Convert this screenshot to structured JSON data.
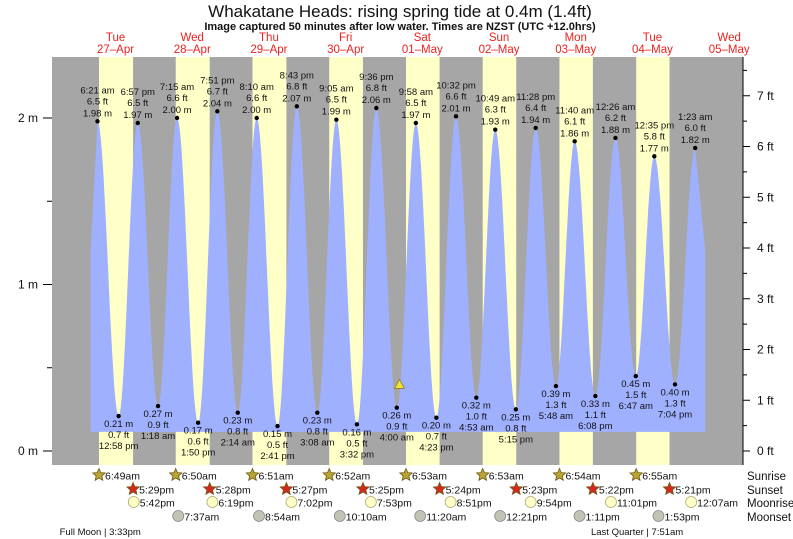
{
  "chart_data": {
    "type": "area",
    "title": "Whakatane Heads: rising  spring tide at 0.4m (1.4ft)",
    "subtitle": "Image captured 50 minutes after low water. Times are NZST (UTC +12.0hrs)",
    "left_axis": {
      "unit": "m",
      "ticks": [
        "0 m",
        "1 m",
        "2 m"
      ],
      "values": [
        0,
        1,
        2
      ]
    },
    "right_axis": {
      "unit": "ft",
      "ticks": [
        "0 ft",
        "1 ft",
        "2 ft",
        "3 ft",
        "4 ft",
        "5 ft",
        "6 ft",
        "7 ft"
      ],
      "values": [
        0,
        1,
        2,
        3,
        4,
        5,
        6,
        7
      ]
    },
    "days": [
      {
        "name": "Tue",
        "date": "27–Apr"
      },
      {
        "name": "Wed",
        "date": "28–Apr"
      },
      {
        "name": "Thu",
        "date": "29–Apr"
      },
      {
        "name": "Fri",
        "date": "30–Apr"
      },
      {
        "name": "Sat",
        "date": "01–May"
      },
      {
        "name": "Sun",
        "date": "02–May"
      },
      {
        "name": "Mon",
        "date": "03–May"
      },
      {
        "name": "Tue",
        "date": "04–May"
      },
      {
        "name": "Wed",
        "date": "05–May"
      }
    ],
    "extremes": [
      {
        "day": 0,
        "type": "high",
        "time": "6:21 am",
        "ft": "6.5 ft",
        "m": 1.98
      },
      {
        "day": 0,
        "type": "low",
        "time": "12:58 pm",
        "ft": "0.7 ft",
        "m": 0.21
      },
      {
        "day": 0,
        "type": "high",
        "time": "6:57 pm",
        "ft": "6.5 ft",
        "m": 1.97
      },
      {
        "day": 1,
        "type": "low",
        "time": "1:18 am",
        "ft": "0.9 ft",
        "m": 0.27
      },
      {
        "day": 1,
        "type": "high",
        "time": "7:15 am",
        "ft": "6.6 ft",
        "m": 2.0
      },
      {
        "day": 1,
        "type": "low",
        "time": "1:50 pm",
        "ft": "0.6 ft",
        "m": 0.17
      },
      {
        "day": 1,
        "type": "high",
        "time": "7:51 pm",
        "ft": "6.7 ft",
        "m": 2.04
      },
      {
        "day": 2,
        "type": "low",
        "time": "2:14 am",
        "ft": "0.8 ft",
        "m": 0.23
      },
      {
        "day": 2,
        "type": "high",
        "time": "8:10 am",
        "ft": "6.6 ft",
        "m": 2.0
      },
      {
        "day": 2,
        "type": "low",
        "time": "2:41 pm",
        "ft": "0.5 ft",
        "m": 0.15
      },
      {
        "day": 2,
        "type": "high",
        "time": "8:43 pm",
        "ft": "6.8 ft",
        "m": 2.07
      },
      {
        "day": 3,
        "type": "low",
        "time": "3:08 am",
        "ft": "0.8 ft",
        "m": 0.23
      },
      {
        "day": 3,
        "type": "high",
        "time": "9:05 am",
        "ft": "6.5 ft",
        "m": 1.99
      },
      {
        "day": 3,
        "type": "low",
        "time": "3:32 pm",
        "ft": "0.5 ft",
        "m": 0.16
      },
      {
        "day": 3,
        "type": "high",
        "time": "9:36 pm",
        "ft": "6.8 ft",
        "m": 2.06
      },
      {
        "day": 4,
        "type": "low",
        "time": "4:00 am",
        "ft": "0.9 ft",
        "m": 0.26
      },
      {
        "day": 4,
        "type": "high",
        "time": "9:58 am",
        "ft": "6.5 ft",
        "m": 1.97
      },
      {
        "day": 4,
        "type": "low",
        "time": "4:23 pm",
        "ft": "0.7 ft",
        "m": 0.2
      },
      {
        "day": 4,
        "type": "high",
        "time": "10:32 pm",
        "ft": "6.6 ft",
        "m": 2.01
      },
      {
        "day": 5,
        "type": "low",
        "time": "4:53 am",
        "ft": "1.0 ft",
        "m": 0.32
      },
      {
        "day": 5,
        "type": "high",
        "time": "10:49 am",
        "ft": "6.3 ft",
        "m": 1.93
      },
      {
        "day": 5,
        "type": "low",
        "time": "5:15 pm",
        "ft": "0.8 ft",
        "m": 0.25
      },
      {
        "day": 5,
        "type": "high",
        "time": "11:28 pm",
        "ft": "6.4 ft",
        "m": 1.94
      },
      {
        "day": 6,
        "type": "low",
        "time": "5:48 am",
        "ft": "1.3 ft",
        "m": 0.39
      },
      {
        "day": 6,
        "type": "high",
        "time": "11:40 am",
        "ft": "6.1 ft",
        "m": 1.86
      },
      {
        "day": 6,
        "type": "low",
        "time": "6:08 pm",
        "ft": "1.1 ft",
        "m": 0.33
      },
      {
        "day": 7,
        "type": "high",
        "time": "12:26 am",
        "ft": "6.2 ft",
        "m": 1.88
      },
      {
        "day": 7,
        "type": "low",
        "time": "6:47 am",
        "ft": "1.5 ft",
        "m": 0.45
      },
      {
        "day": 7,
        "type": "high",
        "time": "12:35 pm",
        "ft": "5.8 ft",
        "m": 1.77
      },
      {
        "day": 7,
        "type": "low",
        "time": "7:04 pm",
        "ft": "1.3 ft",
        "m": 0.4
      },
      {
        "day": 8,
        "type": "high",
        "time": "1:23 am",
        "ft": "6.0 ft",
        "m": 1.82
      }
    ],
    "current": {
      "day": 4,
      "time": "4:50 am",
      "m": 0.4
    },
    "row_labels": [
      "Sunrise",
      "Sunset",
      "Moonrise",
      "Moonset"
    ],
    "sunrise": [
      {
        "day": 0,
        "time": "6:49am"
      },
      {
        "day": 1,
        "time": "6:50am"
      },
      {
        "day": 2,
        "time": "6:51am"
      },
      {
        "day": 3,
        "time": "6:52am"
      },
      {
        "day": 4,
        "time": "6:53am"
      },
      {
        "day": 5,
        "time": "6:53am"
      },
      {
        "day": 6,
        "time": "6:54am"
      },
      {
        "day": 7,
        "time": "6:55am"
      }
    ],
    "sunset": [
      {
        "day": 0,
        "time": "5:29pm"
      },
      {
        "day": 1,
        "time": "5:28pm"
      },
      {
        "day": 2,
        "time": "5:27pm"
      },
      {
        "day": 3,
        "time": "5:25pm"
      },
      {
        "day": 4,
        "time": "5:24pm"
      },
      {
        "day": 5,
        "time": "5:23pm"
      },
      {
        "day": 6,
        "time": "5:22pm"
      },
      {
        "day": 7,
        "time": "5:21pm"
      }
    ],
    "moonrise": [
      {
        "day": 0,
        "time": "5:42pm"
      },
      {
        "day": 1,
        "time": "6:19pm"
      },
      {
        "day": 2,
        "time": "7:02pm"
      },
      {
        "day": 3,
        "time": "7:53pm"
      },
      {
        "day": 4,
        "time": "8:51pm"
      },
      {
        "day": 5,
        "time": "9:54pm"
      },
      {
        "day": 6,
        "time": "11:01pm"
      },
      {
        "day": 8,
        "time": "12:07am"
      }
    ],
    "moonset": [
      {
        "day": 1,
        "time": "7:37am"
      },
      {
        "day": 2,
        "time": "8:54am"
      },
      {
        "day": 3,
        "time": "10:10am"
      },
      {
        "day": 4,
        "time": "11:20am"
      },
      {
        "day": 5,
        "time": "12:21pm"
      },
      {
        "day": 6,
        "time": "1:11pm"
      },
      {
        "day": 7,
        "time": "1:53pm"
      }
    ],
    "moon_phases": [
      {
        "day": 0,
        "label": "Full Moon | 3:33pm"
      },
      {
        "day": 7,
        "label": "Last Quarter | 7:51am"
      }
    ]
  },
  "colors": {
    "tide": "#9fb0ff",
    "night": "#a6a6a6",
    "day": "#ffffc8",
    "day_label": "#e8231f",
    "sunrise": "#b9a534",
    "sunset": "#d7281f",
    "moonrise": "#ffffc8",
    "moonset": "#c4c4b4",
    "marker": "#f2e03a"
  }
}
